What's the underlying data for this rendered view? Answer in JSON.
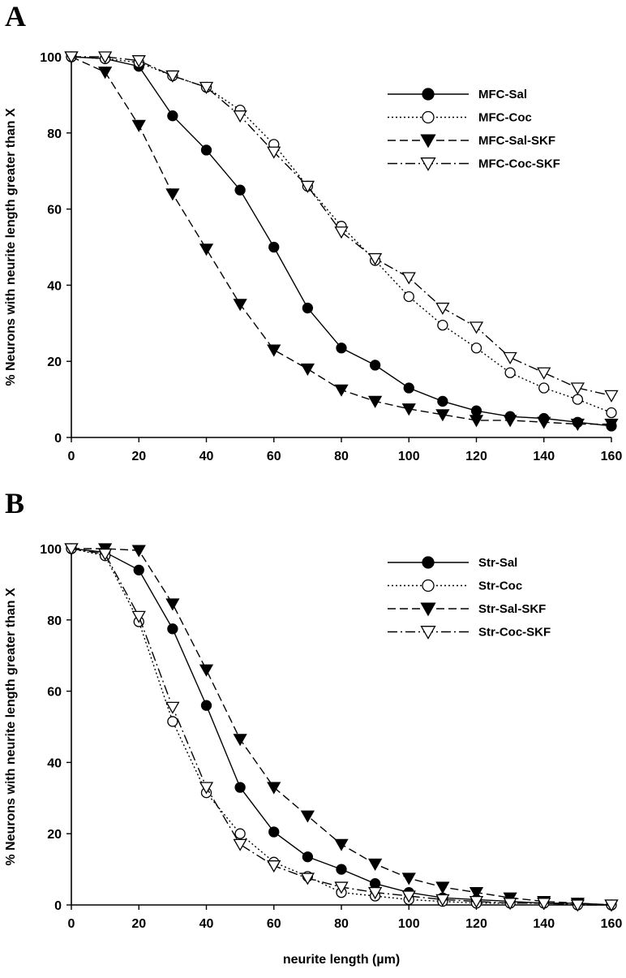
{
  "chart_data": [
    {
      "type": "line",
      "panel_label": "A",
      "title": "",
      "xlabel": "",
      "ylabel": "% Neurons with neurite length greater than X",
      "xlim": [
        0,
        160
      ],
      "ylim": [
        0,
        100
      ],
      "x_ticks": [
        0,
        20,
        40,
        60,
        80,
        100,
        120,
        140,
        160
      ],
      "y_ticks": [
        0,
        20,
        40,
        60,
        80,
        100
      ],
      "legend_position": "top-right",
      "grid": false,
      "x": [
        0,
        10,
        20,
        30,
        40,
        50,
        60,
        70,
        80,
        90,
        100,
        110,
        120,
        130,
        140,
        150,
        160
      ],
      "series": [
        {
          "name": "MFC-Sal",
          "marker": "filled-circle",
          "line": "solid",
          "values": [
            100,
            99.5,
            97.5,
            84.5,
            75.5,
            65,
            50,
            34,
            23.5,
            19,
            13,
            9.5,
            7,
            5.5,
            5,
            4,
            3
          ]
        },
        {
          "name": "MFC-Coc",
          "marker": "open-circle",
          "line": "dotted",
          "values": [
            100,
            99.5,
            98.5,
            95,
            92,
            86,
            77,
            66,
            55.5,
            46.5,
            37,
            29.5,
            23.5,
            17,
            13,
            10,
            6.5
          ]
        },
        {
          "name": "MFC-Sal-SKF",
          "marker": "filled-triangle-down",
          "line": "dashed",
          "values": [
            100,
            96,
            82,
            64,
            49.5,
            35,
            23,
            18,
            12.5,
            9.5,
            7.5,
            6,
            4.5,
            4.5,
            4,
            3.5,
            3.5
          ]
        },
        {
          "name": "MFC-Coc-SKF",
          "marker": "open-triangle-down",
          "line": "dash-dot",
          "values": [
            100,
            100,
            99,
            95,
            92,
            84.5,
            75,
            66,
            54,
            47,
            42,
            34,
            29,
            21,
            17,
            13,
            11
          ]
        }
      ]
    },
    {
      "type": "line",
      "panel_label": "B",
      "title": "",
      "xlabel": "neurite length (µm)",
      "ylabel": "% Neurons with neurite length greater than X",
      "xlim": [
        0,
        160
      ],
      "ylim": [
        0,
        100
      ],
      "x_ticks": [
        0,
        20,
        40,
        60,
        80,
        100,
        120,
        140,
        160
      ],
      "y_ticks": [
        0,
        20,
        40,
        60,
        80,
        100
      ],
      "legend_position": "top-right",
      "grid": false,
      "x": [
        0,
        10,
        20,
        30,
        40,
        50,
        60,
        70,
        80,
        90,
        100,
        110,
        120,
        130,
        140,
        150,
        160
      ],
      "series": [
        {
          "name": "Str-Sal",
          "marker": "filled-circle",
          "line": "solid",
          "values": [
            100,
            99,
            94,
            77.5,
            56,
            33,
            20.5,
            13.5,
            10,
            6,
            3.5,
            2,
            1.5,
            1,
            0.5,
            0.5,
            0
          ]
        },
        {
          "name": "Str-Coc",
          "marker": "open-circle",
          "line": "dotted",
          "values": [
            100,
            98,
            79.5,
            51.5,
            31.5,
            20,
            12,
            8,
            3.5,
            2.5,
            1.5,
            1,
            0.5,
            0.5,
            0.5,
            0,
            0
          ]
        },
        {
          "name": "Str-Sal-SKF",
          "marker": "filled-triangle-down",
          "line": "dashed",
          "values": [
            100,
            100,
            99.5,
            84.5,
            66,
            46.5,
            33,
            25,
            17,
            11.5,
            7.5,
            5,
            3.5,
            2,
            1,
            0.5,
            0
          ]
        },
        {
          "name": "Str-Coc-SKF",
          "marker": "open-triangle-down",
          "line": "dash-dot",
          "values": [
            100,
            98.5,
            81,
            55.5,
            33,
            17,
            11,
            7.5,
            5,
            3.5,
            2.5,
            1.5,
            1,
            0.5,
            0.5,
            0,
            0
          ]
        }
      ]
    }
  ]
}
